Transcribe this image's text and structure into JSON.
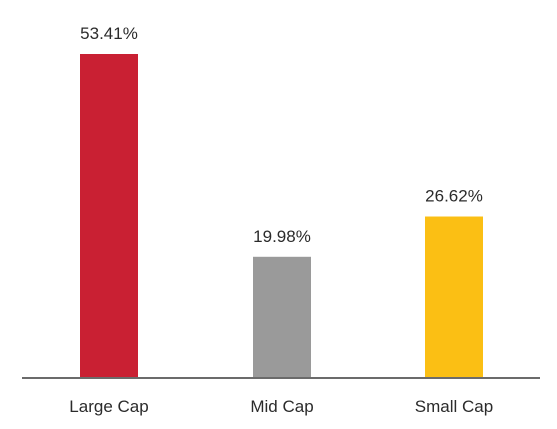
{
  "chart_data": {
    "type": "bar",
    "categories": [
      "Large Cap",
      "Mid Cap",
      "Small Cap"
    ],
    "values": [
      53.41,
      19.98,
      26.62
    ],
    "data_labels": [
      "53.41%",
      "19.98%",
      "26.62%"
    ],
    "colors": [
      "#c92033",
      "#9a9a9a",
      "#fbbf14"
    ],
    "axis_color": "#6b6b6b",
    "ylim": [
      0,
      53.41
    ],
    "grid": false,
    "legend": "none",
    "title": "",
    "xlabel": "",
    "ylabel": ""
  }
}
